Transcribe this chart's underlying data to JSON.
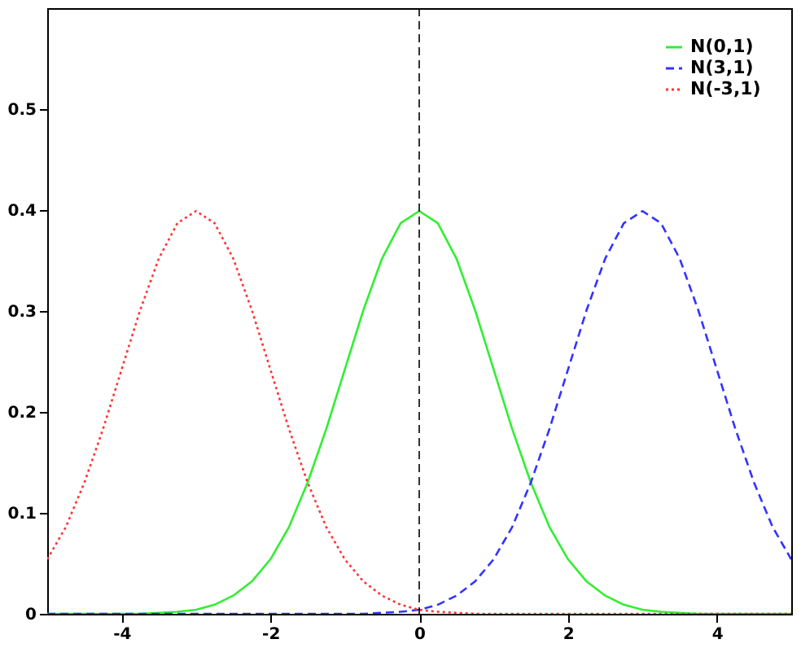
{
  "chart_data": {
    "type": "line",
    "x": [
      -5,
      -4.75,
      -4.5,
      -4.25,
      -4,
      -3.75,
      -3.5,
      -3.25,
      -3,
      -2.75,
      -2.5,
      -2.25,
      -2,
      -1.75,
      -1.5,
      -1.25,
      -1,
      -0.75,
      -0.5,
      -0.25,
      0,
      0.25,
      0.5,
      0.75,
      1,
      1.25,
      1.5,
      1.75,
      2,
      2.25,
      2.5,
      2.75,
      3,
      3.25,
      3.5,
      3.75,
      4,
      4.25,
      4.5,
      4.75,
      5
    ],
    "series": [
      {
        "name": "N(0,1)",
        "color": "#33ee33",
        "line_style": "solid",
        "values": [
          0,
          0,
          0,
          0,
          0,
          0,
          0.001,
          0.002,
          0.004,
          0.009,
          0.018,
          0.032,
          0.054,
          0.086,
          0.13,
          0.183,
          0.242,
          0.301,
          0.352,
          0.387,
          0.399,
          0.387,
          0.352,
          0.301,
          0.242,
          0.183,
          0.13,
          0.086,
          0.054,
          0.032,
          0.018,
          0.009,
          0.004,
          0.002,
          0.001,
          0,
          0,
          0,
          0,
          0,
          0
        ]
      },
      {
        "name": "N(3,1)",
        "color": "#3333ff",
        "line_style": "dashed",
        "values": [
          0,
          0,
          0,
          0,
          0,
          0,
          0,
          0,
          0,
          0,
          0,
          0,
          0,
          0,
          0,
          0,
          0,
          0,
          0.001,
          0.002,
          0.004,
          0.009,
          0.018,
          0.032,
          0.054,
          0.086,
          0.13,
          0.183,
          0.242,
          0.301,
          0.352,
          0.387,
          0.399,
          0.387,
          0.352,
          0.301,
          0.242,
          0.183,
          0.13,
          0.086,
          0.054
        ]
      },
      {
        "name": "N(-3,1)",
        "color": "#ff3333",
        "line_style": "dotted",
        "values": [
          0.054,
          0.086,
          0.13,
          0.183,
          0.242,
          0.301,
          0.352,
          0.387,
          0.399,
          0.387,
          0.352,
          0.301,
          0.242,
          0.183,
          0.13,
          0.086,
          0.054,
          0.032,
          0.018,
          0.009,
          0.004,
          0.002,
          0.001,
          0,
          0,
          0,
          0,
          0,
          0,
          0,
          0,
          0,
          0,
          0,
          0,
          0,
          0,
          0,
          0,
          0,
          0
        ]
      }
    ],
    "xlim": [
      -5,
      5
    ],
    "xticks": [
      -4,
      -2,
      0,
      2,
      4
    ],
    "ylim": [
      0,
      0.6
    ],
    "yticks": [
      0,
      0.1,
      0.2,
      0.3,
      0.4,
      0.5
    ],
    "ref_lines": [
      {
        "axis": "x",
        "value": 0,
        "color": "#000000",
        "line_style": "dashed"
      }
    ],
    "grid": false,
    "legend": "top right"
  }
}
